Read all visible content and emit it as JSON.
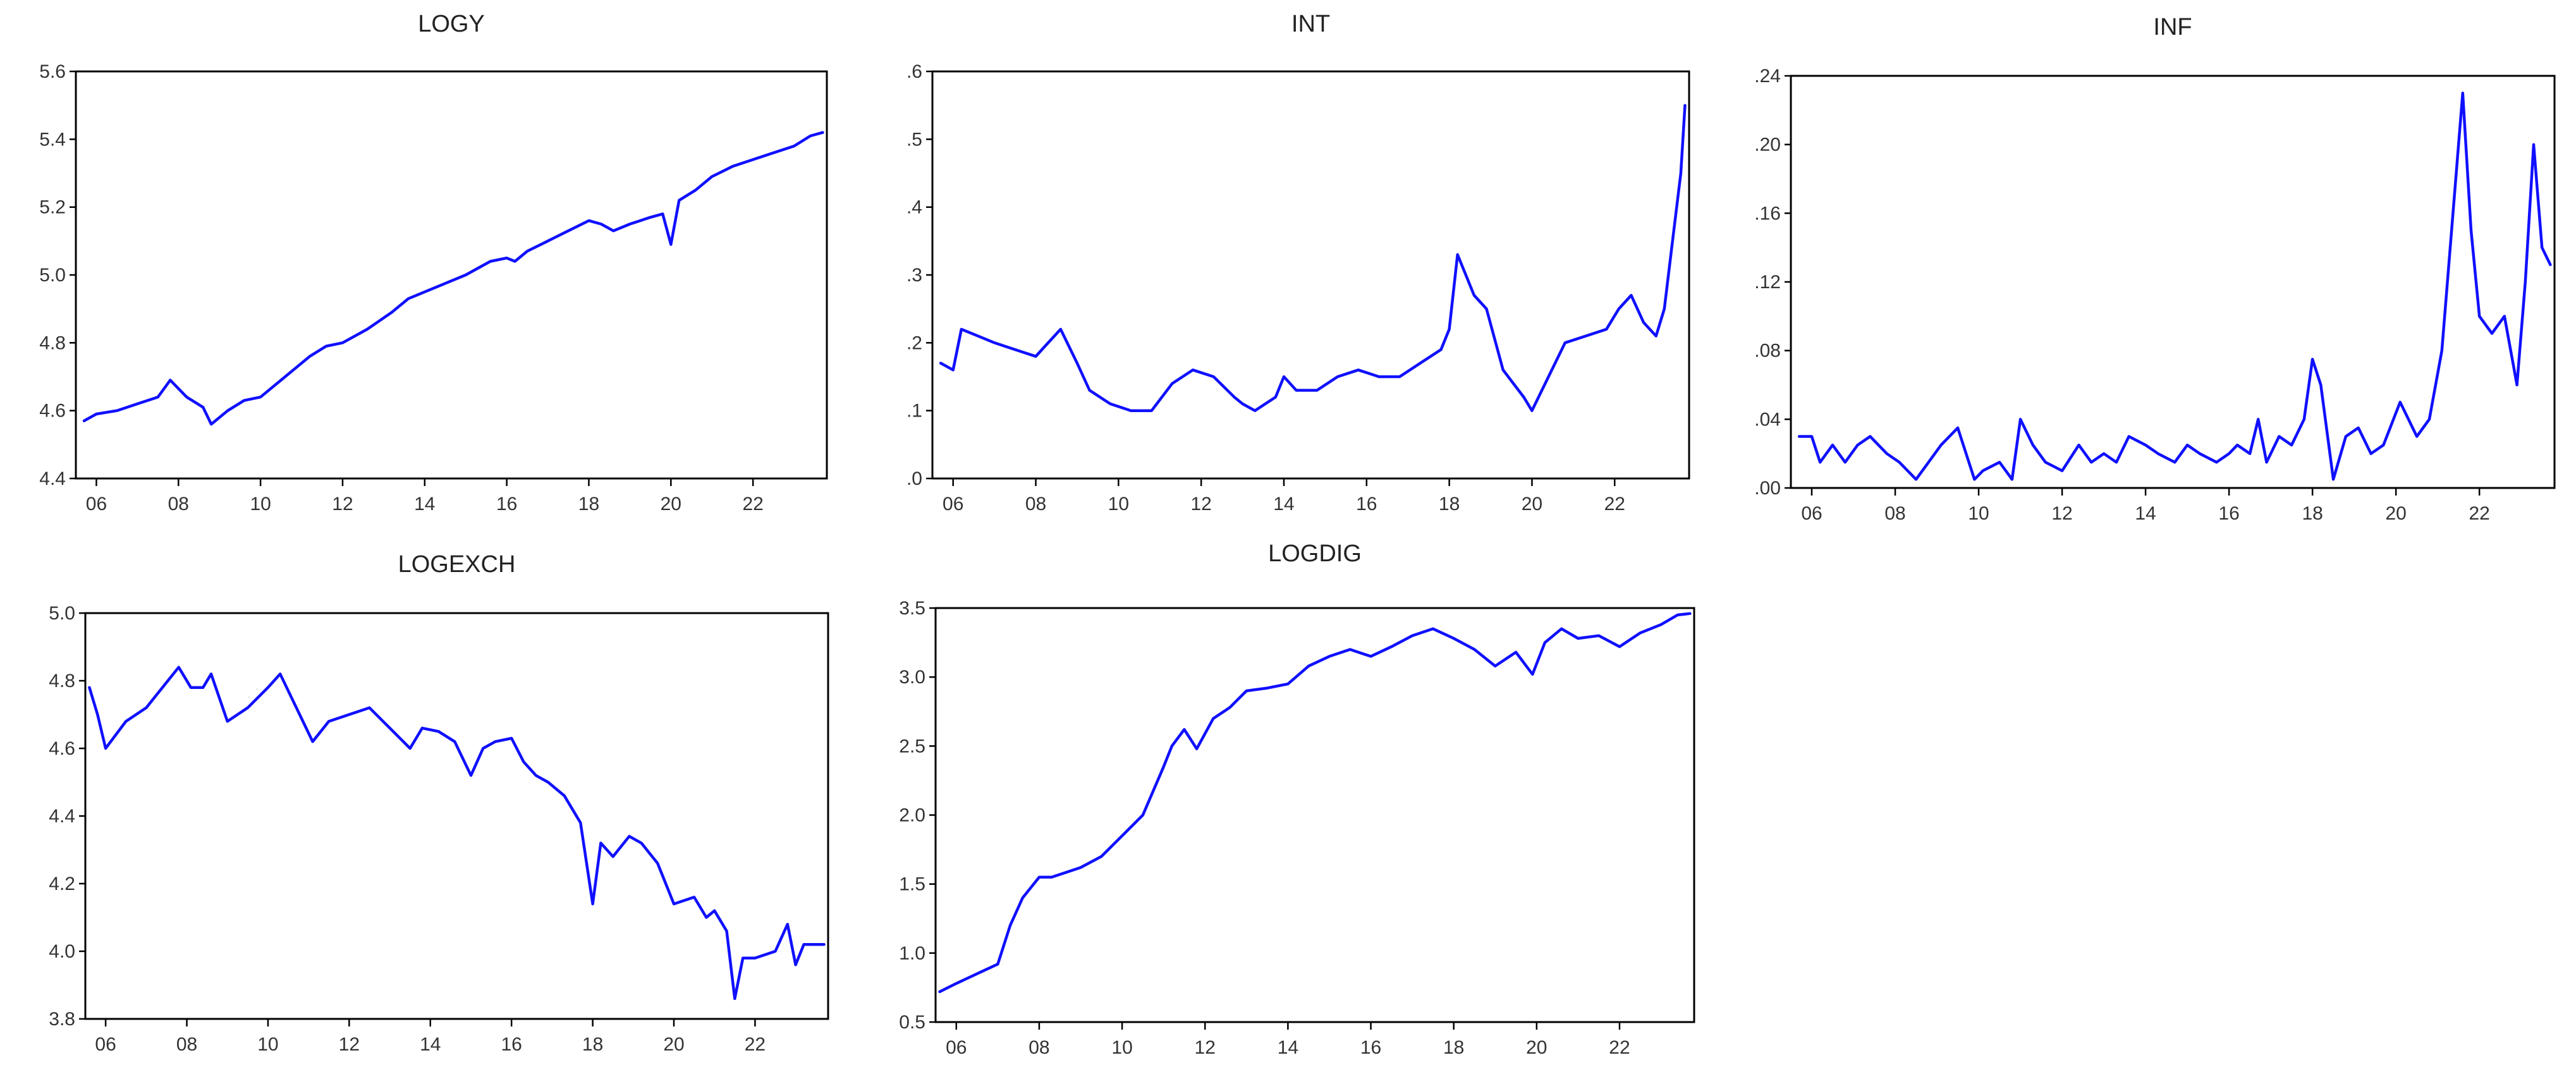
{
  "page": {
    "line_color": "#1010ff",
    "background_color": "#ffffff"
  },
  "chart_data": [
    {
      "type": "line",
      "title": "LOGY",
      "xlim": [
        2005.5,
        2023.8
      ],
      "ylim": [
        4.4,
        5.6
      ],
      "x_ticks": [
        2006,
        2008,
        2010,
        2012,
        2014,
        2016,
        2018,
        2020,
        2022
      ],
      "x_tick_labels": [
        "06",
        "08",
        "10",
        "12",
        "14",
        "16",
        "18",
        "20",
        "22"
      ],
      "y_ticks": [
        4.4,
        4.6,
        4.8,
        5.0,
        5.2,
        5.4,
        5.6
      ],
      "y_tick_labels": [
        "4.4",
        "4.6",
        "4.8",
        "5.0",
        "5.2",
        "5.4",
        "5.6"
      ],
      "series": [
        {
          "x": [
            2005.7,
            2006.0,
            2006.5,
            2007.0,
            2007.5,
            2007.8,
            2008.2,
            2008.6,
            2008.8,
            2009.2,
            2009.6,
            2010.0,
            2010.6,
            2011.2,
            2011.6,
            2012.0,
            2012.6,
            2013.2,
            2013.6,
            2014.0,
            2014.6,
            2015.0,
            2015.6,
            2016.0,
            2016.2,
            2016.5,
            2017.0,
            2017.5,
            2018.0,
            2018.3,
            2018.6,
            2019.0,
            2019.5,
            2019.8,
            2020.0,
            2020.2,
            2020.6,
            2021.0,
            2021.5,
            2022.0,
            2022.5,
            2023.0,
            2023.4,
            2023.7
          ],
          "values": [
            4.57,
            4.59,
            4.6,
            4.62,
            4.64,
            4.69,
            4.64,
            4.61,
            4.56,
            4.6,
            4.63,
            4.64,
            4.7,
            4.76,
            4.79,
            4.8,
            4.84,
            4.89,
            4.93,
            4.95,
            4.98,
            5.0,
            5.04,
            5.05,
            5.04,
            5.07,
            5.1,
            5.13,
            5.16,
            5.15,
            5.13,
            5.15,
            5.17,
            5.18,
            5.09,
            5.22,
            5.25,
            5.29,
            5.32,
            5.34,
            5.36,
            5.38,
            5.41,
            5.42
          ]
        }
      ]
    },
    {
      "type": "line",
      "title": "INT",
      "xlim": [
        2005.5,
        2023.8
      ],
      "ylim": [
        0.0,
        0.6
      ],
      "x_ticks": [
        2006,
        2008,
        2010,
        2012,
        2014,
        2016,
        2018,
        2020,
        2022
      ],
      "x_tick_labels": [
        "06",
        "08",
        "10",
        "12",
        "14",
        "16",
        "18",
        "20",
        "22"
      ],
      "y_ticks": [
        0.0,
        0.1,
        0.2,
        0.3,
        0.4,
        0.5,
        0.6
      ],
      "y_tick_labels": [
        ".0",
        ".1",
        ".2",
        ".3",
        ".4",
        ".5",
        ".6"
      ],
      "series": [
        {
          "x": [
            2005.7,
            2006.0,
            2006.2,
            2006.6,
            2007.0,
            2007.5,
            2008.0,
            2008.3,
            2008.6,
            2009.0,
            2009.3,
            2009.8,
            2010.3,
            2010.8,
            2011.3,
            2011.8,
            2012.3,
            2012.8,
            2013.0,
            2013.3,
            2013.8,
            2014.0,
            2014.3,
            2014.8,
            2015.3,
            2015.8,
            2016.3,
            2016.8,
            2017.3,
            2017.8,
            2018.0,
            2018.2,
            2018.6,
            2018.9,
            2019.3,
            2019.8,
            2020.0,
            2020.4,
            2020.8,
            2021.3,
            2021.8,
            2022.1,
            2022.4,
            2022.7,
            2023.0,
            2023.2,
            2023.4,
            2023.6,
            2023.7
          ],
          "values": [
            0.17,
            0.16,
            0.22,
            0.21,
            0.2,
            0.19,
            0.18,
            0.2,
            0.22,
            0.17,
            0.13,
            0.11,
            0.1,
            0.1,
            0.14,
            0.16,
            0.15,
            0.12,
            0.11,
            0.1,
            0.12,
            0.15,
            0.13,
            0.13,
            0.15,
            0.16,
            0.15,
            0.15,
            0.17,
            0.19,
            0.22,
            0.33,
            0.27,
            0.25,
            0.16,
            0.12,
            0.1,
            0.15,
            0.2,
            0.21,
            0.22,
            0.25,
            0.27,
            0.23,
            0.21,
            0.25,
            0.35,
            0.45,
            0.55
          ]
        }
      ]
    },
    {
      "type": "line",
      "title": "INF",
      "xlim": [
        2005.5,
        2023.8
      ],
      "ylim": [
        0.0,
        0.24
      ],
      "x_ticks": [
        2006,
        2008,
        2010,
        2012,
        2014,
        2016,
        2018,
        2020,
        2022
      ],
      "x_tick_labels": [
        "06",
        "08",
        "10",
        "12",
        "14",
        "16",
        "18",
        "20",
        "22"
      ],
      "y_ticks": [
        0.0,
        0.04,
        0.08,
        0.12,
        0.16,
        0.2,
        0.24
      ],
      "y_tick_labels": [
        ".00",
        ".04",
        ".08",
        ".12",
        ".16",
        ".20",
        ".24"
      ],
      "series": [
        {
          "x": [
            2005.7,
            2006.0,
            2006.2,
            2006.5,
            2006.8,
            2007.1,
            2007.4,
            2007.8,
            2008.1,
            2008.5,
            2008.8,
            2009.1,
            2009.5,
            2009.9,
            2010.1,
            2010.5,
            2010.8,
            2011.0,
            2011.3,
            2011.6,
            2012.0,
            2012.4,
            2012.7,
            2013.0,
            2013.3,
            2013.6,
            2014.0,
            2014.3,
            2014.7,
            2015.0,
            2015.3,
            2015.7,
            2016.0,
            2016.2,
            2016.5,
            2016.7,
            2016.9,
            2017.2,
            2017.5,
            2017.8,
            2018.0,
            2018.2,
            2018.5,
            2018.8,
            2019.1,
            2019.4,
            2019.7,
            2020.1,
            2020.5,
            2020.8,
            2021.1,
            2021.4,
            2021.6,
            2021.8,
            2022.0,
            2022.3,
            2022.6,
            2022.9,
            2023.1,
            2023.3,
            2023.5,
            2023.7
          ],
          "values": [
            0.03,
            0.03,
            0.015,
            0.025,
            0.015,
            0.025,
            0.03,
            0.02,
            0.015,
            0.005,
            0.015,
            0.025,
            0.035,
            0.005,
            0.01,
            0.015,
            0.005,
            0.04,
            0.025,
            0.015,
            0.01,
            0.025,
            0.015,
            0.02,
            0.015,
            0.03,
            0.025,
            0.02,
            0.015,
            0.025,
            0.02,
            0.015,
            0.02,
            0.025,
            0.02,
            0.04,
            0.015,
            0.03,
            0.025,
            0.04,
            0.075,
            0.06,
            0.005,
            0.03,
            0.035,
            0.02,
            0.025,
            0.05,
            0.03,
            0.04,
            0.08,
            0.17,
            0.23,
            0.15,
            0.1,
            0.09,
            0.1,
            0.06,
            0.12,
            0.2,
            0.14,
            0.13
          ]
        }
      ]
    },
    {
      "type": "line",
      "title": "LOGEXCH",
      "xlim": [
        2005.5,
        2023.8
      ],
      "ylim": [
        3.8,
        5.0
      ],
      "x_ticks": [
        2006,
        2008,
        2010,
        2012,
        2014,
        2016,
        2018,
        2020,
        2022
      ],
      "x_tick_labels": [
        "06",
        "08",
        "10",
        "12",
        "14",
        "16",
        "18",
        "20",
        "22"
      ],
      "y_ticks": [
        3.8,
        4.0,
        4.2,
        4.4,
        4.6,
        4.8,
        5.0
      ],
      "y_tick_labels": [
        "3.8",
        "4.0",
        "4.2",
        "4.4",
        "4.6",
        "4.8",
        "5.0"
      ],
      "series": [
        {
          "x": [
            2005.6,
            2005.8,
            2006.0,
            2006.5,
            2007.0,
            2007.4,
            2007.8,
            2008.1,
            2008.4,
            2008.6,
            2009.0,
            2009.5,
            2010.0,
            2010.3,
            2010.7,
            2011.1,
            2011.5,
            2012.0,
            2012.5,
            2013.0,
            2013.5,
            2013.8,
            2014.2,
            2014.6,
            2015.0,
            2015.3,
            2015.6,
            2016.0,
            2016.3,
            2016.6,
            2016.9,
            2017.3,
            2017.7,
            2018.0,
            2018.2,
            2018.5,
            2018.9,
            2019.2,
            2019.6,
            2020.0,
            2020.5,
            2020.8,
            2021.0,
            2021.3,
            2021.5,
            2021.7,
            2022.0,
            2022.5,
            2022.8,
            2023.0,
            2023.2,
            2023.5,
            2023.7
          ],
          "values": [
            4.78,
            4.7,
            4.6,
            4.68,
            4.72,
            4.78,
            4.84,
            4.78,
            4.78,
            4.82,
            4.68,
            4.72,
            4.78,
            4.82,
            4.72,
            4.62,
            4.68,
            4.7,
            4.72,
            4.66,
            4.6,
            4.66,
            4.65,
            4.62,
            4.52,
            4.6,
            4.62,
            4.63,
            4.56,
            4.52,
            4.5,
            4.46,
            4.38,
            4.14,
            4.32,
            4.28,
            4.34,
            4.32,
            4.26,
            4.14,
            4.16,
            4.1,
            4.12,
            4.06,
            3.86,
            3.98,
            3.98,
            4.0,
            4.08,
            3.96,
            4.02,
            4.02,
            4.02
          ]
        }
      ]
    },
    {
      "type": "line",
      "title": "LOGDIG",
      "xlim": [
        2005.5,
        2023.8
      ],
      "ylim": [
        0.5,
        3.5
      ],
      "x_ticks": [
        2006,
        2008,
        2010,
        2012,
        2014,
        2016,
        2018,
        2020,
        2022
      ],
      "x_tick_labels": [
        "06",
        "08",
        "10",
        "12",
        "14",
        "16",
        "18",
        "20",
        "22"
      ],
      "y_ticks": [
        0.5,
        1.0,
        1.5,
        2.0,
        2.5,
        3.0,
        3.5
      ],
      "y_tick_labels": [
        "0.5",
        "1.0",
        "1.5",
        "2.0",
        "2.5",
        "3.0",
        "3.5"
      ],
      "series": [
        {
          "x": [
            2005.6,
            2006.0,
            2006.5,
            2007.0,
            2007.3,
            2007.6,
            2008.0,
            2008.3,
            2008.6,
            2009.0,
            2009.5,
            2010.0,
            2010.5,
            2011.0,
            2011.2,
            2011.5,
            2011.8,
            2012.2,
            2012.6,
            2013.0,
            2013.5,
            2014.0,
            2014.5,
            2015.0,
            2015.5,
            2016.0,
            2016.5,
            2017.0,
            2017.5,
            2018.0,
            2018.5,
            2019.0,
            2019.5,
            2019.9,
            2020.2,
            2020.6,
            2021.0,
            2021.5,
            2022.0,
            2022.5,
            2023.0,
            2023.4,
            2023.7
          ],
          "values": [
            0.72,
            0.78,
            0.85,
            0.92,
            1.2,
            1.4,
            1.55,
            1.55,
            1.58,
            1.62,
            1.7,
            1.85,
            2.0,
            2.35,
            2.5,
            2.62,
            2.48,
            2.7,
            2.78,
            2.9,
            2.92,
            2.95,
            3.08,
            3.15,
            3.2,
            3.15,
            3.22,
            3.3,
            3.35,
            3.28,
            3.2,
            3.08,
            3.18,
            3.02,
            3.25,
            3.35,
            3.28,
            3.3,
            3.22,
            3.32,
            3.38,
            3.45,
            3.46
          ]
        }
      ]
    }
  ]
}
